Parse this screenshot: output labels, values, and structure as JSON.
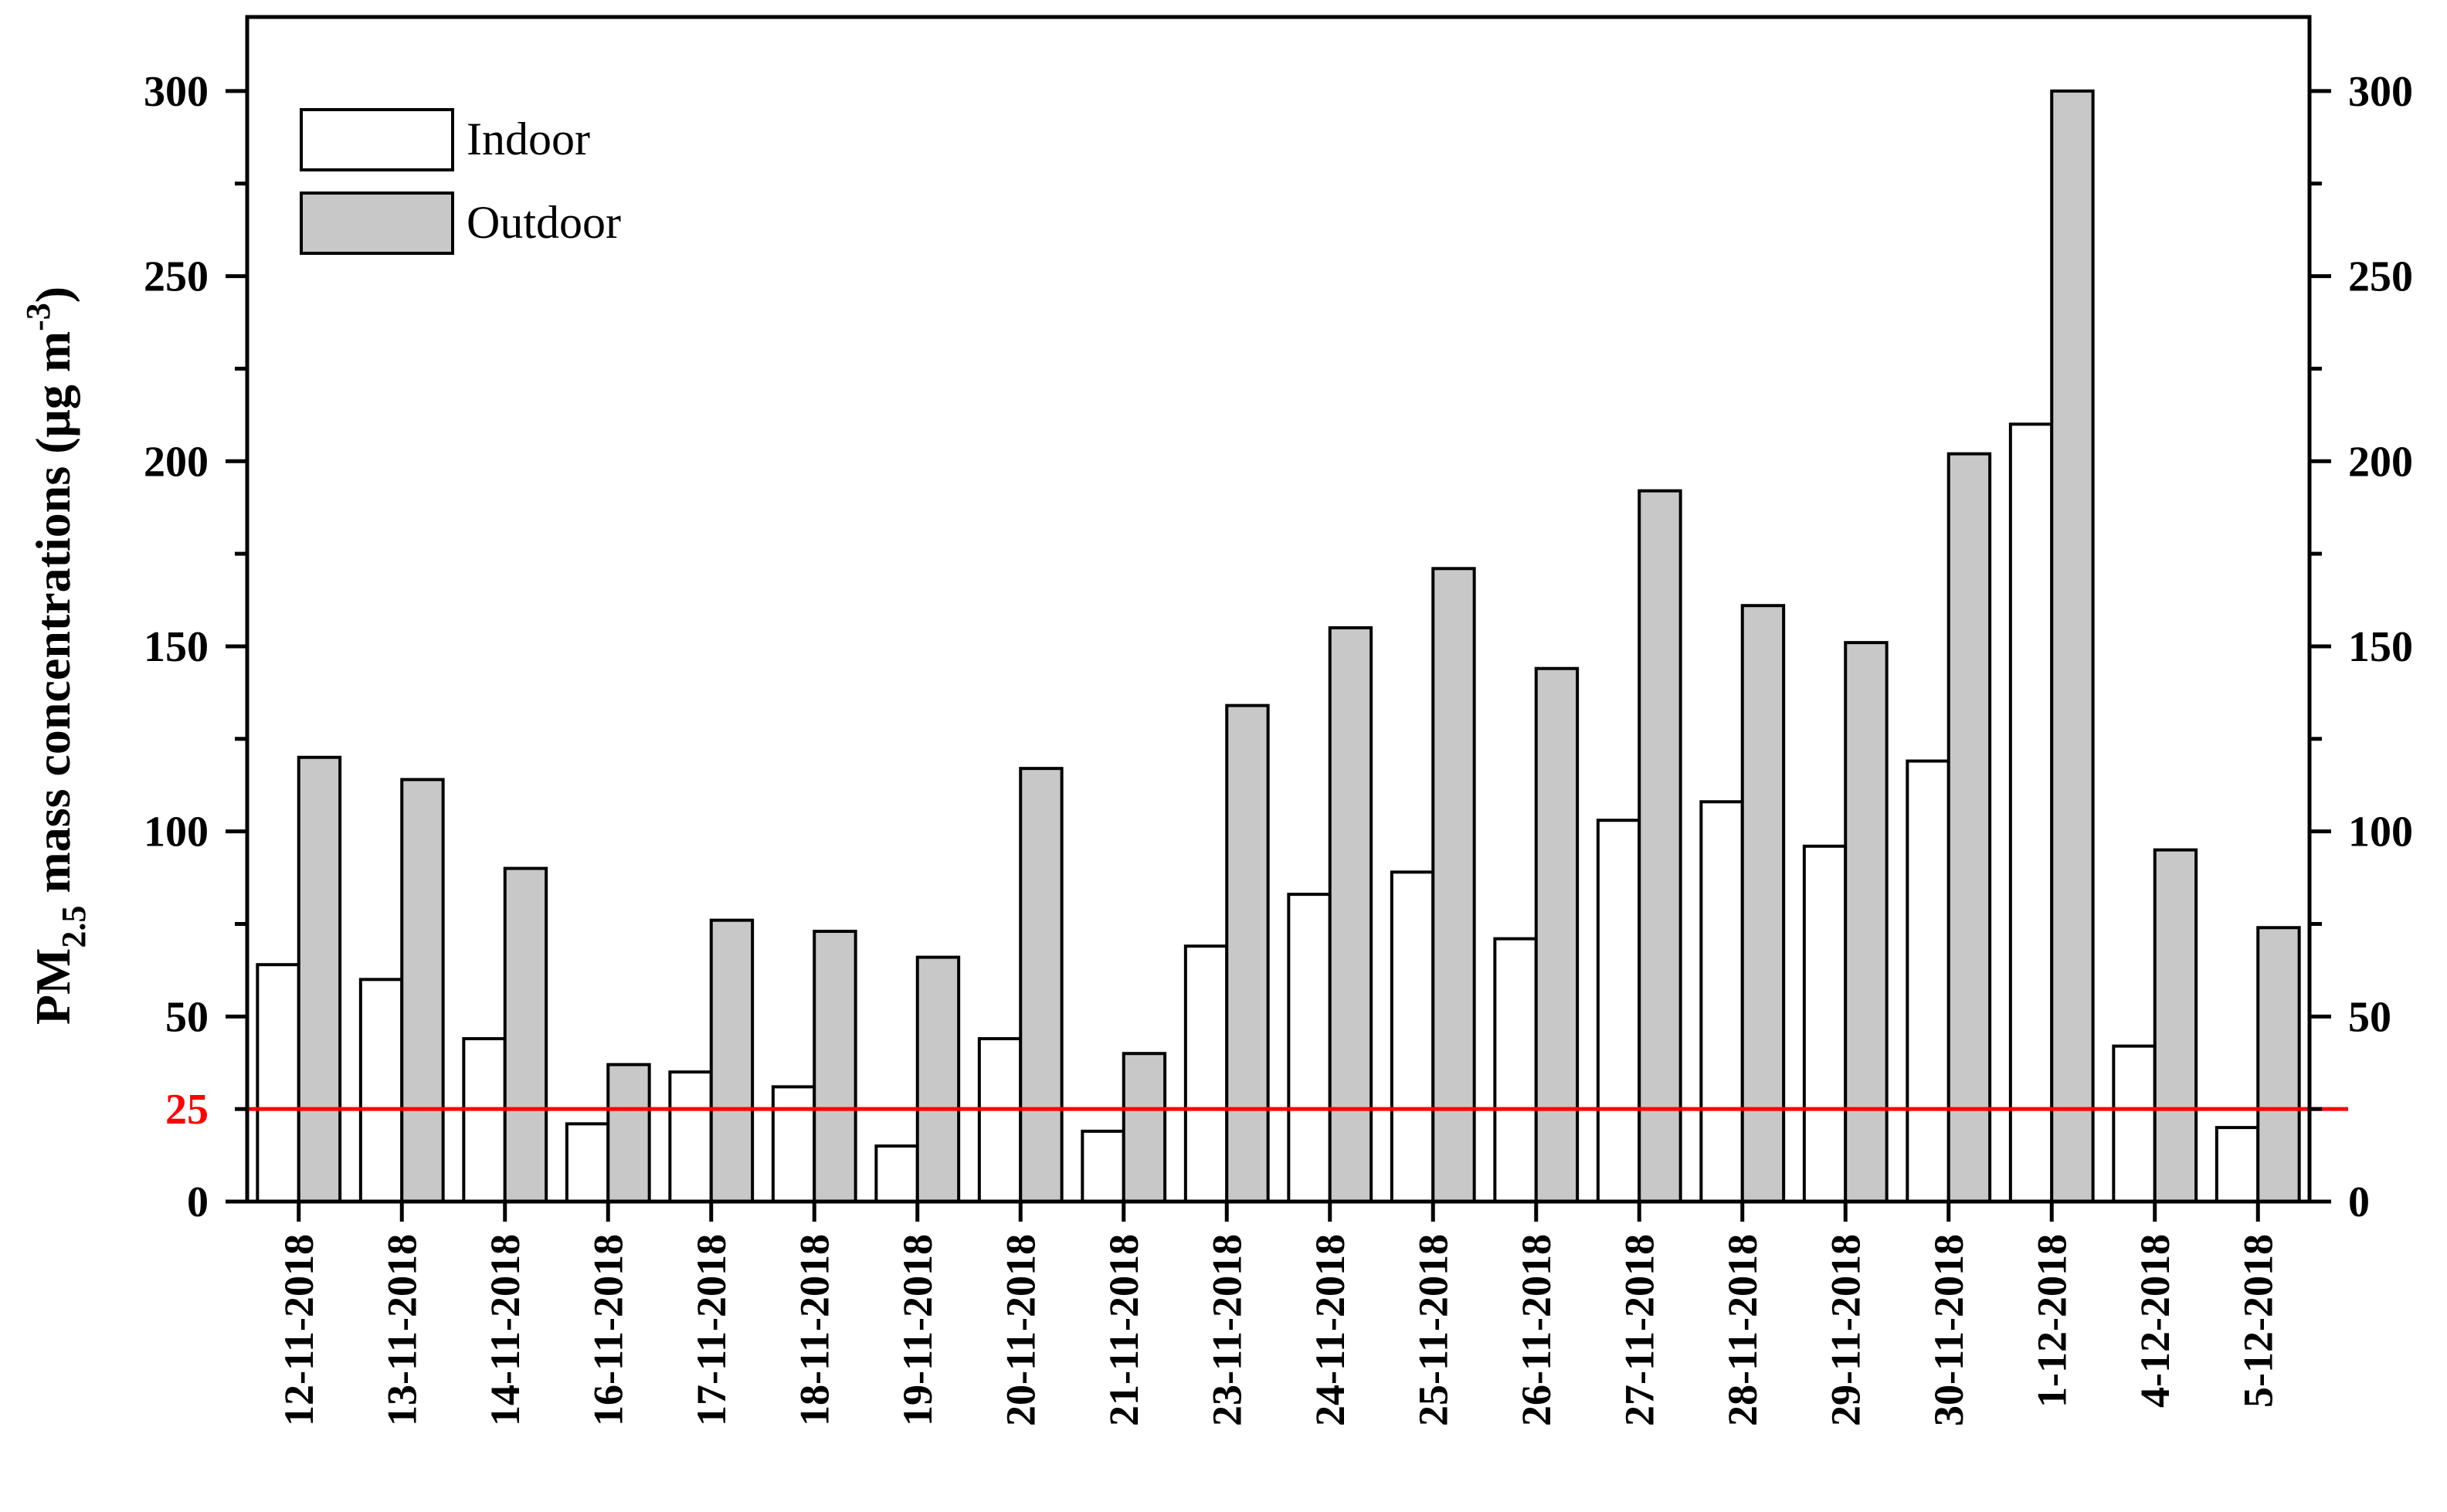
{
  "chart_data": {
    "type": "bar",
    "categories": [
      "12-11-2018",
      "13-11-2018",
      "14-11-2018",
      "16-11-2018",
      "17-11-2018",
      "18-11-2018",
      "19-11-2018",
      "20-11-2018",
      "21-11-2018",
      "23-11-2018",
      "24-11-2018",
      "25-11-2018",
      "26-11-2018",
      "27-11-2018",
      "28-11-2018",
      "29-11-2018",
      "30-11-2018",
      "1-12-2018",
      "4-12-2018",
      "5-12-2018"
    ],
    "series": [
      {
        "name": "Indoor",
        "color": "#ffffff",
        "values": [
          64,
          60,
          44,
          21,
          35,
          31,
          15,
          44,
          19,
          69,
          83,
          89,
          71,
          103,
          108,
          96,
          119,
          210,
          42,
          20
        ]
      },
      {
        "name": "Outdoor",
        "color": "#c8c8c8",
        "values": [
          120,
          114,
          90,
          37,
          76,
          73,
          66,
          117,
          40,
          134,
          155,
          171,
          144,
          192,
          161,
          151,
          202,
          300,
          95,
          74
        ]
      }
    ],
    "ylabel_parts": {
      "main": "PM",
      "sub": "2.5",
      "rest": " mass concentrations (μg m",
      "sup": "-3",
      "close": ")"
    },
    "ylim": [
      0,
      320
    ],
    "yticks": [
      "0",
      "50",
      "100",
      "150",
      "200",
      "250",
      "300"
    ],
    "right_yticks": [
      "0",
      "50",
      "100",
      "150",
      "200",
      "250",
      "300"
    ],
    "reference_line": {
      "value": 25,
      "label": "25",
      "color": "#ff0000"
    },
    "legend_position": "top-left",
    "grid": false
  }
}
